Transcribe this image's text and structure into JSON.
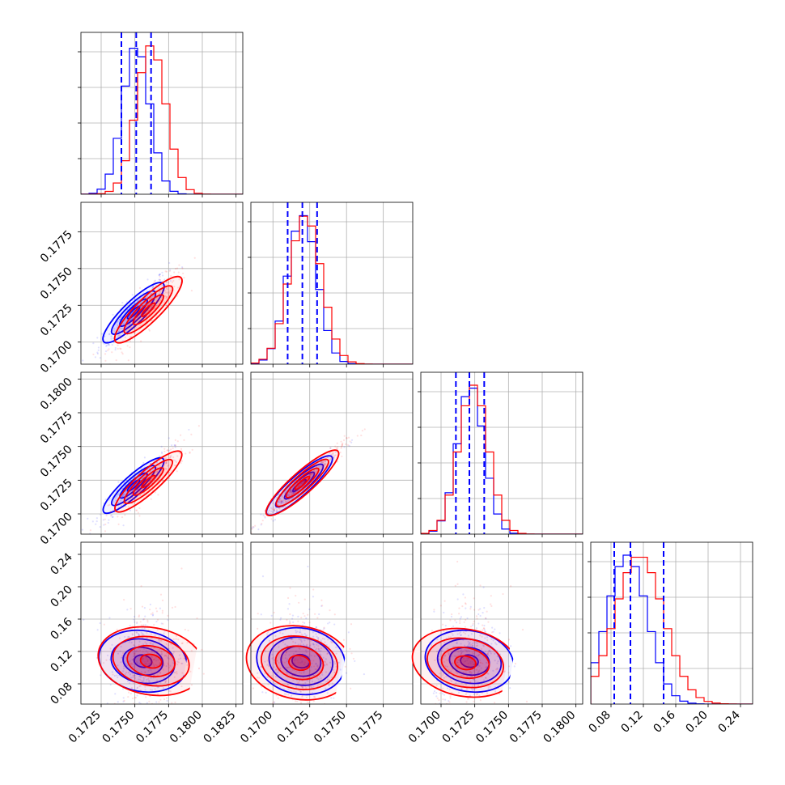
{
  "chart_data": {
    "type": "corner",
    "description_free": true,
    "colors": {
      "series_a": "#0000ff",
      "series_b": "#ff0000",
      "grid": "#b0b0b0"
    },
    "series": [
      {
        "color": "#0000ff"
      },
      {
        "color": "#ff0000"
      }
    ],
    "parameters": [
      {
        "range": [
          0.171,
          0.183
        ],
        "ticks": [
          "0.1725",
          "0.1750",
          "0.1775",
          "0.1800",
          "0.1825"
        ],
        "tick_values": [
          0.1725,
          0.175,
          0.1775,
          0.18,
          0.1825
        ],
        "row_ticks": [],
        "row_tick_values": [],
        "histogram_a": {
          "mean": 0.1751,
          "sd": 0.001
        },
        "histogram_b": {
          "mean": 0.1762,
          "sd": 0.0011
        },
        "quantiles_a": [
          0.174,
          0.1751,
          0.1762
        ]
      },
      {
        "range": [
          0.1685,
          0.1795
        ],
        "ticks": [
          "0.1700",
          "0.1725",
          "0.1750",
          "0.1775"
        ],
        "tick_values": [
          0.17,
          0.1725,
          0.175,
          0.1775
        ],
        "row_ticks": [
          "0.1700",
          "0.1725",
          "0.1750",
          "0.1775"
        ],
        "row_tick_values": [
          0.17,
          0.1725,
          0.175,
          0.1775
        ],
        "histogram_a": {
          "mean": 0.172,
          "sd": 0.001
        },
        "histogram_b": {
          "mean": 0.1722,
          "sd": 0.0011
        },
        "quantiles_a": [
          0.171,
          0.172,
          0.173
        ]
      },
      {
        "range": [
          0.1685,
          0.1805
        ],
        "ticks": [
          "0.1700",
          "0.1725",
          "0.1750",
          "0.1775",
          "0.1800"
        ],
        "tick_values": [
          0.17,
          0.1725,
          0.175,
          0.1775,
          0.18
        ],
        "row_ticks": [
          "0.1700",
          "0.1725",
          "0.1750",
          "0.1775",
          "0.1800"
        ],
        "row_tick_values": [
          0.17,
          0.1725,
          0.175,
          0.1775,
          0.18
        ],
        "histogram_a": {
          "mean": 0.1722,
          "sd": 0.001
        },
        "histogram_b": {
          "mean": 0.1724,
          "sd": 0.0011
        },
        "quantiles_a": [
          0.1711,
          0.1721,
          0.1732
        ]
      },
      {
        "range": [
          0.055,
          0.255
        ],
        "ticks": [
          "0.08",
          "0.12",
          "0.16",
          "0.20",
          "0.24"
        ],
        "tick_values": [
          0.08,
          0.12,
          0.16,
          0.2,
          0.24
        ],
        "row_ticks": [
          "0.08",
          "0.12",
          "0.16",
          "0.20",
          "0.24"
        ],
        "row_tick_values": [
          0.08,
          0.12,
          0.16,
          0.2,
          0.24
        ],
        "histogram_a": {
          "mean": 0.1,
          "sd": 0.025
        },
        "histogram_b": {
          "mean": 0.115,
          "sd": 0.03
        },
        "quantiles_a": [
          0.084,
          0.104,
          0.145
        ]
      }
    ],
    "pair_centers": {
      "1-0": {
        "a": [
          0.1749,
          0.172
        ],
        "b": [
          0.176,
          0.1722
        ]
      },
      "2-0": {
        "a": [
          0.1749,
          0.1721
        ],
        "b": [
          0.176,
          0.1724
        ]
      },
      "2-1": {
        "a": [
          0.1718,
          0.1721
        ],
        "b": [
          0.172,
          0.1723
        ]
      },
      "3-0": {
        "a": [
          0.1756,
          0.108
        ],
        "b": [
          0.1762,
          0.108
        ]
      },
      "3-1": {
        "a": [
          0.1719,
          0.108
        ],
        "b": [
          0.1718,
          0.106
        ]
      },
      "3-2": {
        "a": [
          0.1721,
          0.108
        ],
        "b": [
          0.1718,
          0.106
        ]
      }
    },
    "grid": true
  }
}
